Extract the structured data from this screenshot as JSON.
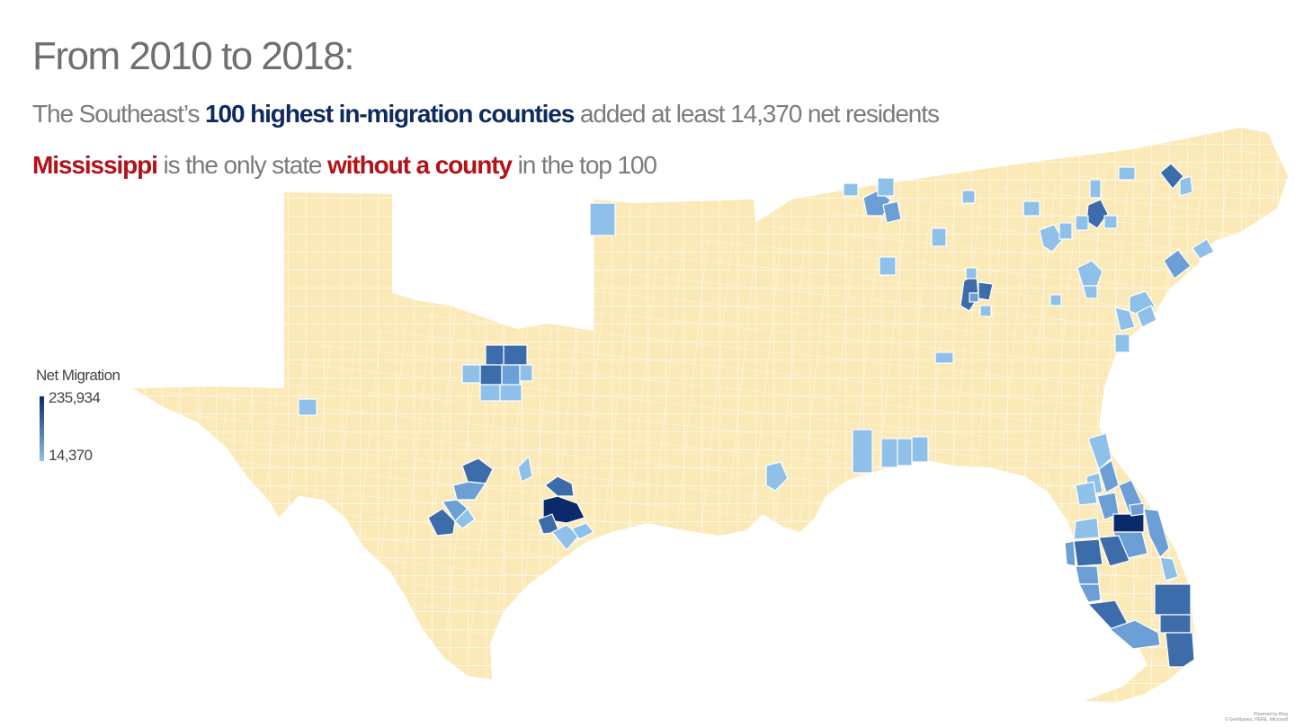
{
  "header": {
    "title": "From 2010 to 2018:",
    "line1_pre": "The Southeast’s ",
    "line1_bold": "100 highest in-migration counties",
    "line1_post": " added at least 14,370 net residents",
    "line2_bold1": "Mississippi",
    "line2_mid": " is the only state ",
    "line2_bold2": "without a county",
    "line2_post": " in the top 100"
  },
  "legend": {
    "title": "Net Migration",
    "max": "235,934",
    "min": "14,370"
  },
  "credits": {
    "line1": "Powered by Bing",
    "line2": "© GeoNames, HERE, Microsoft"
  },
  "colors": {
    "land": "#fbe9b7",
    "border": "#ffffff",
    "light": "#8ec0ea",
    "mid": "#6b9fd6",
    "strong": "#3d6cab",
    "darkest": "#0b2a6b"
  }
}
